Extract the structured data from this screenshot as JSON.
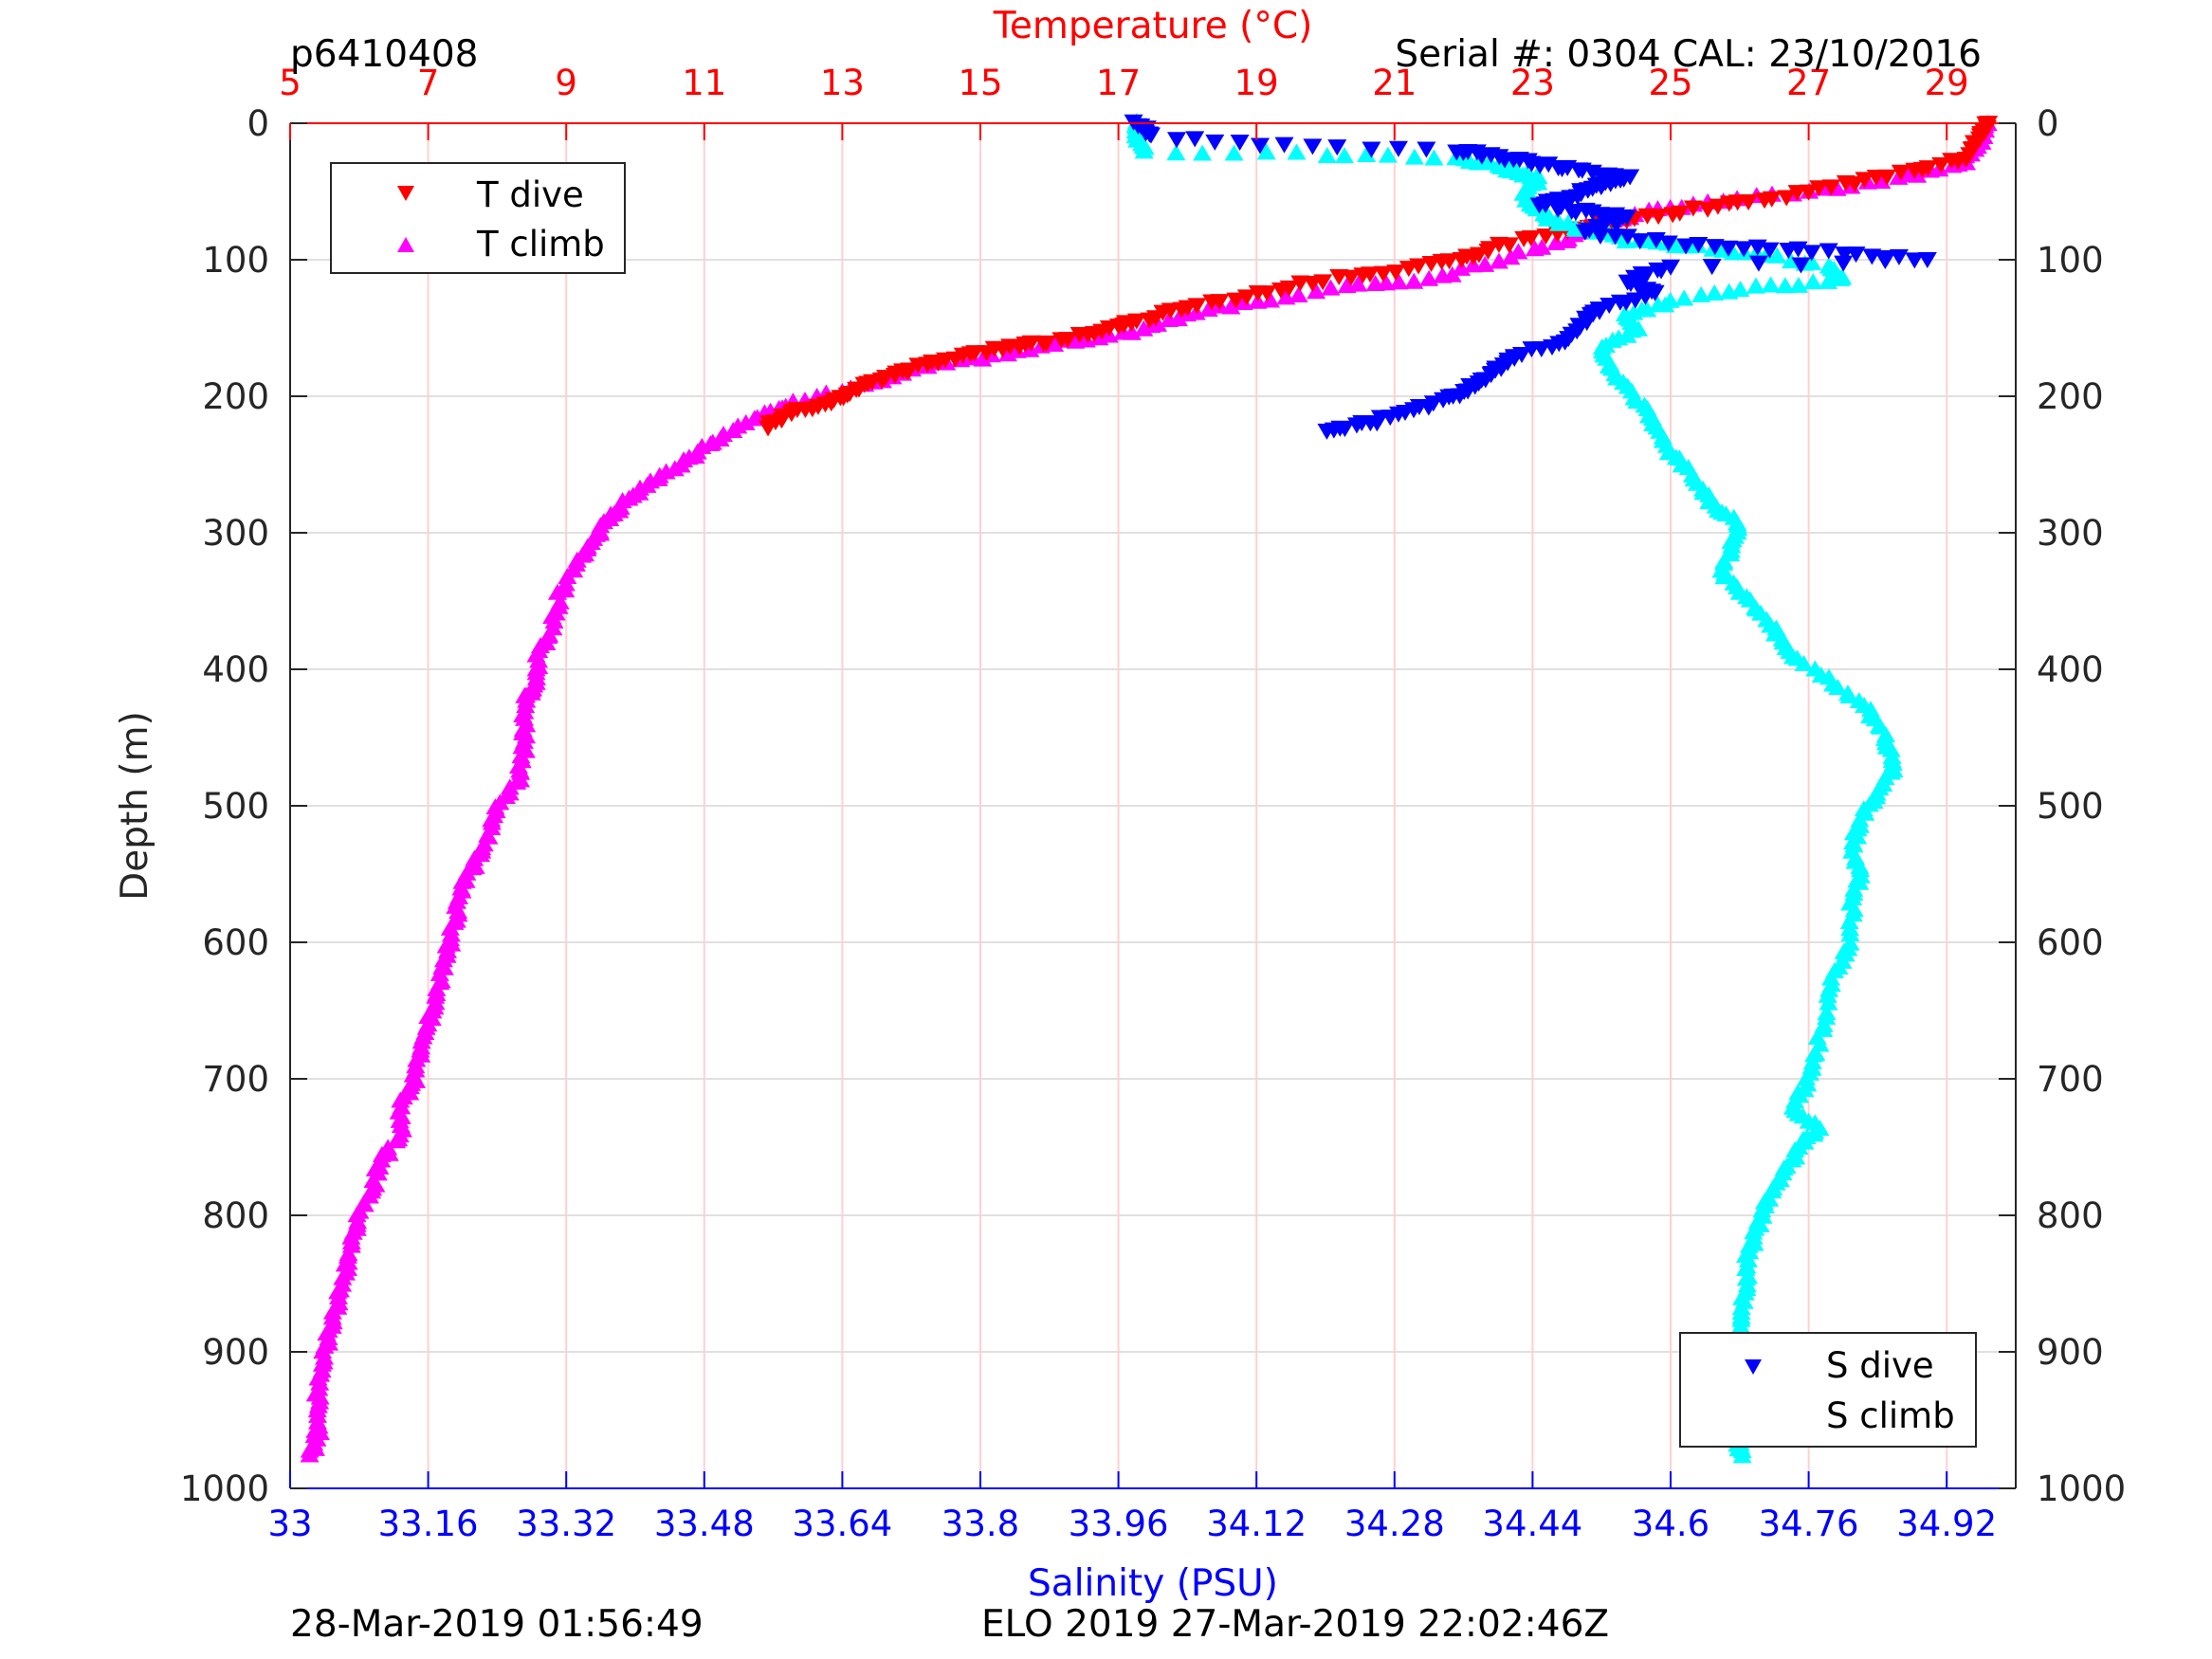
{
  "header": {
    "profile_id": "p6410408",
    "serial": "Serial #: 0304  CAL: 23/10/2016"
  },
  "footer": {
    "left": "28-Mar-2019 01:56:49",
    "center": "ELO 2019 27-Mar-2019 22:02:46Z"
  },
  "colors": {
    "temperature_axis": "#ff0000",
    "salinity_axis": "#0000ff",
    "T_dive": "#ff0000",
    "T_climb": "#ff00ff",
    "S_dive": "#0000ff",
    "S_climb": "#00ffff"
  },
  "chart_data": {
    "type": "scatter",
    "title": "",
    "top_axis": {
      "label": "Temperature (°C)",
      "range": [
        5,
        30
      ],
      "ticks": [
        "5",
        "7",
        "9",
        "11",
        "13",
        "15",
        "17",
        "19",
        "21",
        "23",
        "25",
        "27",
        "29"
      ],
      "tick_values": [
        5,
        7,
        9,
        11,
        13,
        15,
        17,
        19,
        21,
        23,
        25,
        27,
        29
      ]
    },
    "bottom_axis": {
      "label": "Salinity (PSU)",
      "range": [
        33,
        35
      ],
      "ticks": [
        "33",
        "33.16",
        "33.32",
        "33.48",
        "33.64",
        "33.8",
        "33.96",
        "34.12",
        "34.28",
        "34.44",
        "34.6",
        "34.76",
        "34.92"
      ],
      "tick_values": [
        33,
        33.16,
        33.32,
        33.48,
        33.64,
        33.8,
        33.96,
        34.12,
        34.28,
        34.44,
        34.6,
        34.76,
        34.92
      ]
    },
    "y_axis": {
      "label": "Depth (m)",
      "range": [
        0,
        1000
      ],
      "reversed": true,
      "ticks": [
        "0",
        "100",
        "200",
        "300",
        "400",
        "500",
        "600",
        "700",
        "800",
        "900",
        "1000"
      ],
      "tick_values": [
        0,
        100,
        200,
        300,
        400,
        500,
        600,
        700,
        800,
        900,
        1000
      ]
    },
    "grid": true,
    "legends": [
      {
        "placement": "top-left",
        "entries": [
          {
            "name": "T dive",
            "marker": "down-triangle",
            "color": "#ff0000"
          },
          {
            "name": "T climb",
            "marker": "up-triangle",
            "color": "#ff00ff"
          }
        ]
      },
      {
        "placement": "bottom-right",
        "entries": [
          {
            "name": "S dive",
            "marker": "down-triangle",
            "color": "#0000ff"
          },
          {
            "name": "S climb",
            "marker": "up-triangle",
            "color": "#00ffff"
          }
        ]
      }
    ],
    "series": [
      {
        "name": "T dive",
        "axis": "temperature",
        "marker": "down-triangle",
        "color": "#ff0000",
        "points": [
          [
            29.6,
            0
          ],
          [
            29.5,
            10
          ],
          [
            29.3,
            25
          ],
          [
            28.5,
            35
          ],
          [
            27.5,
            45
          ],
          [
            26.5,
            55
          ],
          [
            25.5,
            62
          ],
          [
            24.5,
            70
          ],
          [
            23.5,
            78
          ],
          [
            22.5,
            90
          ],
          [
            22.0,
            100
          ],
          [
            21.0,
            108
          ],
          [
            20.0,
            115
          ],
          [
            19.0,
            125
          ],
          [
            18.0,
            135
          ],
          [
            17.3,
            145
          ],
          [
            16.8,
            152
          ],
          [
            16.0,
            160
          ],
          [
            15.3,
            165
          ],
          [
            14.6,
            172
          ],
          [
            14.0,
            180
          ],
          [
            13.6,
            188
          ],
          [
            13.2,
            195
          ],
          [
            12.8,
            205
          ],
          [
            12.3,
            212
          ],
          [
            11.9,
            222
          ]
        ]
      },
      {
        "name": "T climb",
        "axis": "temperature",
        "marker": "up-triangle",
        "color": "#ff00ff",
        "points": [
          [
            29.6,
            0
          ],
          [
            29.5,
            15
          ],
          [
            29.2,
            30
          ],
          [
            28.3,
            40
          ],
          [
            27.0,
            50
          ],
          [
            25.5,
            58
          ],
          [
            24.5,
            66
          ],
          [
            23.8,
            75
          ],
          [
            23.5,
            85
          ],
          [
            22.5,
            100
          ],
          [
            21.5,
            115
          ],
          [
            20.3,
            120
          ],
          [
            19.0,
            130
          ],
          [
            18.0,
            140
          ],
          [
            17.2,
            152
          ],
          [
            16.2,
            160
          ],
          [
            15.2,
            170
          ],
          [
            14.2,
            178
          ],
          [
            13.3,
            192
          ],
          [
            12.3,
            205
          ],
          [
            11.8,
            215
          ],
          [
            11.2,
            230
          ],
          [
            10.8,
            245
          ],
          [
            10.3,
            260
          ],
          [
            9.9,
            275
          ],
          [
            9.6,
            290
          ],
          [
            9.4,
            305
          ],
          [
            9.2,
            320
          ],
          [
            8.9,
            345
          ],
          [
            8.8,
            370
          ],
          [
            8.6,
            390
          ],
          [
            8.6,
            410
          ],
          [
            8.4,
            420
          ],
          [
            8.4,
            440
          ],
          [
            8.4,
            460
          ],
          [
            8.3,
            480
          ],
          [
            8.0,
            500
          ],
          [
            7.9,
            520
          ],
          [
            7.7,
            540
          ],
          [
            7.5,
            560
          ],
          [
            7.4,
            580
          ],
          [
            7.3,
            600
          ],
          [
            7.2,
            620
          ],
          [
            7.1,
            640
          ],
          [
            7.0,
            660
          ],
          [
            6.9,
            680
          ],
          [
            6.8,
            700
          ],
          [
            6.6,
            720
          ],
          [
            6.6,
            740
          ],
          [
            6.3,
            760
          ],
          [
            6.2,
            780
          ],
          [
            6.0,
            800
          ],
          [
            5.9,
            820
          ],
          [
            5.8,
            840
          ],
          [
            5.7,
            860
          ],
          [
            5.6,
            880
          ],
          [
            5.5,
            900
          ],
          [
            5.4,
            920
          ],
          [
            5.4,
            940
          ],
          [
            5.4,
            960
          ],
          [
            5.3,
            975
          ]
        ]
      },
      {
        "name": "S dive",
        "axis": "salinity",
        "marker": "down-triangle",
        "color": "#0000ff",
        "points": [
          [
            33.98,
            0
          ],
          [
            34.0,
            10
          ],
          [
            34.15,
            17
          ],
          [
            34.35,
            20
          ],
          [
            34.4,
            25
          ],
          [
            34.45,
            30
          ],
          [
            34.5,
            35
          ],
          [
            34.55,
            40
          ],
          [
            34.52,
            45
          ],
          [
            34.5,
            50
          ],
          [
            34.48,
            55
          ],
          [
            34.45,
            60
          ],
          [
            34.5,
            65
          ],
          [
            34.55,
            70
          ],
          [
            34.5,
            80
          ],
          [
            34.6,
            88
          ],
          [
            34.7,
            92
          ],
          [
            34.8,
            95
          ],
          [
            34.9,
            100
          ],
          [
            34.6,
            105
          ],
          [
            34.55,
            115
          ],
          [
            34.58,
            125
          ],
          [
            34.52,
            135
          ],
          [
            34.5,
            145
          ],
          [
            34.48,
            160
          ],
          [
            34.42,
            170
          ],
          [
            34.4,
            180
          ],
          [
            34.38,
            190
          ],
          [
            34.35,
            200
          ],
          [
            34.3,
            210
          ],
          [
            34.25,
            220
          ],
          [
            34.2,
            225
          ]
        ]
      },
      {
        "name": "S climb",
        "axis": "salinity",
        "marker": "up-triangle",
        "color": "#00ffff",
        "points": [
          [
            33.98,
            0
          ],
          [
            33.98,
            10
          ],
          [
            33.99,
            20
          ],
          [
            34.2,
            23
          ],
          [
            34.35,
            25
          ],
          [
            34.4,
            30
          ],
          [
            34.42,
            35
          ],
          [
            34.45,
            40
          ],
          [
            34.43,
            50
          ],
          [
            34.44,
            60
          ],
          [
            34.46,
            70
          ],
          [
            34.5,
            78
          ],
          [
            34.55,
            85
          ],
          [
            34.62,
            90
          ],
          [
            34.7,
            95
          ],
          [
            34.78,
            105
          ],
          [
            34.8,
            115
          ],
          [
            34.7,
            120
          ],
          [
            34.6,
            130
          ],
          [
            34.55,
            140
          ],
          [
            34.56,
            150
          ],
          [
            34.52,
            165
          ],
          [
            34.53,
            180
          ],
          [
            34.56,
            200
          ],
          [
            34.58,
            220
          ],
          [
            34.6,
            240
          ],
          [
            34.63,
            260
          ],
          [
            34.65,
            280
          ],
          [
            34.68,
            295
          ],
          [
            34.67,
            310
          ],
          [
            34.66,
            330
          ],
          [
            34.69,
            350
          ],
          [
            34.72,
            370
          ],
          [
            34.74,
            390
          ],
          [
            34.79,
            410
          ],
          [
            34.83,
            430
          ],
          [
            34.85,
            450
          ],
          [
            34.86,
            470
          ],
          [
            34.84,
            490
          ],
          [
            34.82,
            510
          ],
          [
            34.81,
            530
          ],
          [
            34.82,
            550
          ],
          [
            34.81,
            570
          ],
          [
            34.81,
            600
          ],
          [
            34.79,
            620
          ],
          [
            34.78,
            650
          ],
          [
            34.77,
            680
          ],
          [
            34.76,
            700
          ],
          [
            34.74,
            720
          ],
          [
            34.77,
            735
          ],
          [
            34.75,
            750
          ],
          [
            34.73,
            770
          ],
          [
            34.71,
            790
          ],
          [
            34.7,
            810
          ],
          [
            34.69,
            830
          ],
          [
            34.69,
            850
          ],
          [
            34.68,
            870
          ],
          [
            34.68,
            890
          ],
          [
            34.68,
            910
          ],
          [
            34.69,
            930
          ],
          [
            34.69,
            950
          ],
          [
            34.68,
            965
          ],
          [
            34.68,
            975
          ]
        ]
      }
    ]
  }
}
